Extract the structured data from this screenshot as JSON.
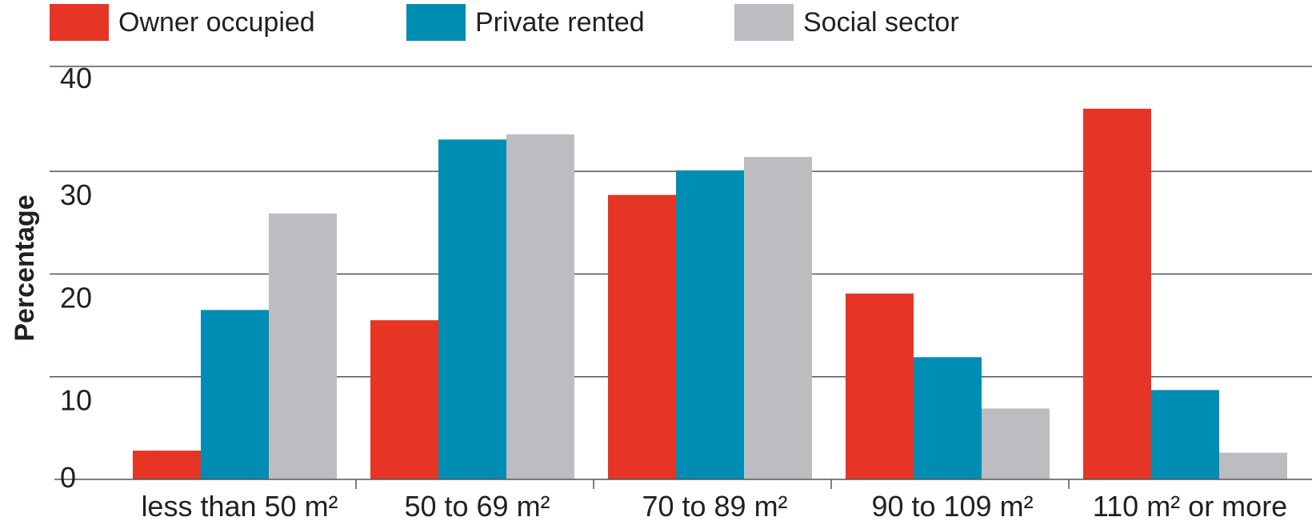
{
  "chart_data": {
    "type": "bar",
    "categories": [
      "less than 50 m²",
      "50 to 69 m²",
      "70 to 89 m²",
      "90 to 109 m²",
      "110 m² or more"
    ],
    "series": [
      {
        "name": "Owner occupied",
        "color": "#e63524",
        "values": [
          2.8,
          15.5,
          27.7,
          18.1,
          36.1
        ]
      },
      {
        "name": "Private rented",
        "color": "#008db3",
        "values": [
          16.5,
          33.1,
          30.1,
          11.9,
          8.7
        ]
      },
      {
        "name": "Social sector",
        "color": "#bcbdc0",
        "values": [
          25.9,
          33.6,
          31.4,
          6.9,
          2.6
        ]
      }
    ],
    "ylabel": "Percentage",
    "yticks": [
      "0",
      "10",
      "20",
      "30",
      "40"
    ],
    "ylim": [
      0,
      40
    ],
    "grid": true,
    "legend_position": "top"
  }
}
